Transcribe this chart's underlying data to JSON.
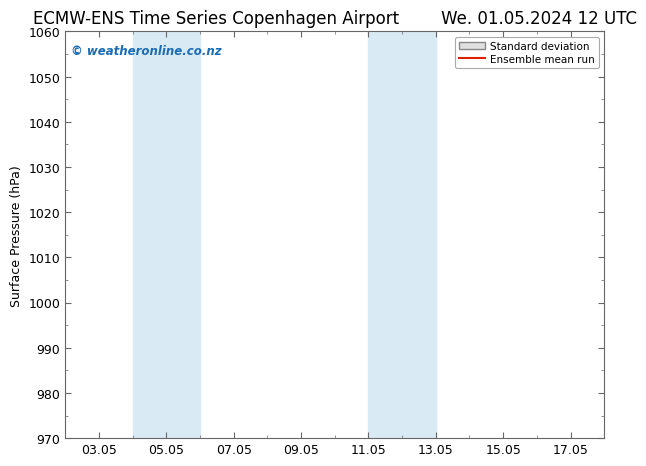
{
  "title_left": "ECMW-ENS Time Series Copenhagen Airport",
  "title_right": "We. 01.05.2024 12 UTC",
  "ylabel": "Surface Pressure (hPa)",
  "ylim": [
    970,
    1060
  ],
  "yticks": [
    970,
    980,
    990,
    1000,
    1010,
    1020,
    1030,
    1040,
    1050,
    1060
  ],
  "xtick_labels": [
    "03.05",
    "05.05",
    "07.05",
    "09.05",
    "11.05",
    "13.05",
    "15.05",
    "17.05"
  ],
  "xtick_positions": [
    3,
    5,
    7,
    9,
    11,
    13,
    15,
    17
  ],
  "xlim": [
    2,
    18
  ],
  "shaded_bands": [
    {
      "x_start": 4.0,
      "x_end": 6.0
    },
    {
      "x_start": 11.0,
      "x_end": 13.0
    }
  ],
  "shaded_color": "#daeaf5",
  "watermark_text": "© weatheronline.co.nz",
  "watermark_color": "#1a6db5",
  "legend_std_label": "Standard deviation",
  "legend_mean_label": "Ensemble mean run",
  "legend_std_facecolor": "#e0e0e0",
  "legend_std_edgecolor": "#888888",
  "legend_mean_color": "#dd2200",
  "background_color": "#ffffff",
  "spine_color": "#666666",
  "title_fontsize": 12,
  "tick_label_fontsize": 9,
  "ylabel_fontsize": 9
}
